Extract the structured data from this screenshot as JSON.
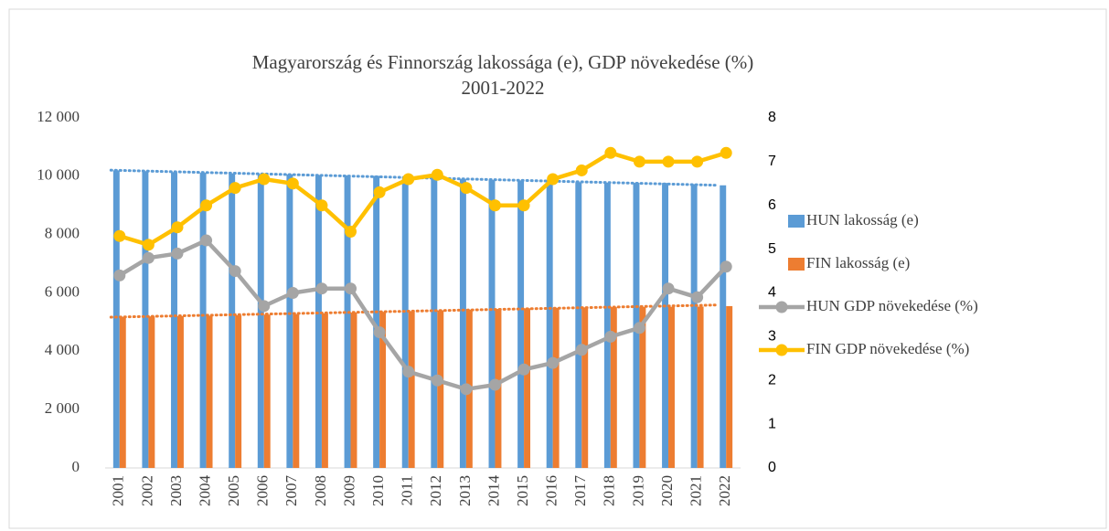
{
  "chart_data": {
    "type": "bar-line",
    "title": [
      "Magyarország és Finnország lakossága (e), GDP növekedése (%)",
      "2001-2022"
    ],
    "categories": [
      "2001",
      "2002",
      "2003",
      "2004",
      "2005",
      "2006",
      "2007",
      "2008",
      "2009",
      "2010",
      "2011",
      "2012",
      "2013",
      "2014",
      "2015",
      "2016",
      "2017",
      "2018",
      "2019",
      "2020",
      "2021",
      "2022"
    ],
    "series": [
      {
        "name": "HUN lakosság (e)",
        "color": "#5b9bd5",
        "kind": "bar",
        "trendline": true,
        "values": [
          10200,
          10175,
          10142,
          10117,
          10098,
          10077,
          10066,
          10045,
          10031,
          10014,
          9986,
          9932,
          9909,
          9877,
          9856,
          9830,
          9798,
          9778,
          9773,
          9770,
          9731,
          9689
        ]
      },
      {
        "name": "FIN lakosság (e)",
        "color": "#ed7d31",
        "kind": "bar",
        "trendline": true,
        "values": [
          5181,
          5195,
          5206,
          5220,
          5237,
          5256,
          5277,
          5300,
          5326,
          5351,
          5375,
          5401,
          5427,
          5451,
          5472,
          5487,
          5503,
          5513,
          5518,
          5525,
          5533,
          5548
        ]
      },
      {
        "name": "HUN GDP növekedése (%)",
        "color": "#a5a5a5",
        "kind": "line",
        "axis": "y2",
        "values": [
          4.4,
          4.8,
          4.9,
          5.2,
          4.5,
          3.7,
          4.0,
          4.1,
          4.1,
          3.1,
          2.2,
          2.0,
          1.8,
          1.9,
          2.25,
          2.4,
          2.7,
          3.0,
          3.2,
          4.1,
          3.9,
          4.6
        ]
      },
      {
        "name": "FIN GDP növekedése (%)",
        "color": "#ffc000",
        "kind": "line",
        "axis": "y2",
        "values": [
          5.3,
          5.1,
          5.5,
          6.0,
          6.4,
          6.6,
          6.5,
          6.0,
          5.4,
          6.3,
          6.6,
          6.7,
          6.4,
          6.0,
          6.0,
          6.6,
          6.8,
          7.2,
          7.0,
          7.0,
          7.0,
          7.2
        ]
      }
    ],
    "ylim": [
      0,
      12000
    ],
    "yticks": [
      0,
      {
        "value": 2000,
        "label": "2 000"
      },
      {
        "value": 4000,
        "label": "4 000"
      },
      {
        "value": 6000,
        "label": "6 000"
      },
      {
        "value": 8000,
        "label": "8 000"
      },
      {
        "value": 10000,
        "label": "10 000"
      },
      {
        "value": 12000,
        "label": "12 000"
      }
    ],
    "y2lim": [
      0,
      8
    ],
    "y2ticks": [
      0,
      1,
      2,
      3,
      4,
      5,
      6,
      7,
      8
    ],
    "legend": "right"
  }
}
